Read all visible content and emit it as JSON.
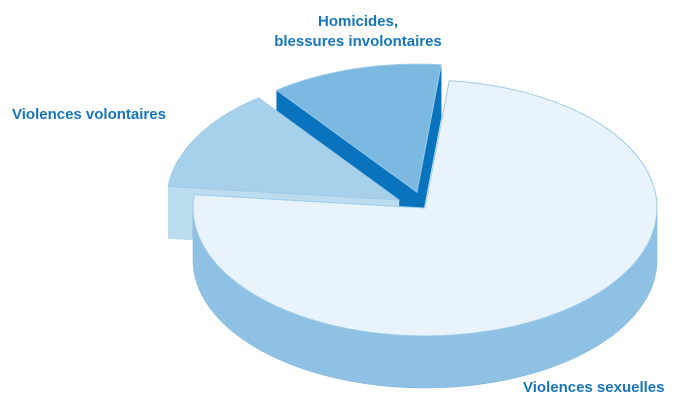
{
  "chart_data": {
    "type": "pie",
    "style": "3d-exploded",
    "labels": [
      "Violences sexuelles",
      "Violences volontaires",
      "Homicides, blessures involontaires"
    ],
    "label_lines": [
      [
        "Violences sexuelles"
      ],
      [
        "Violences volontaires"
      ],
      [
        "Homicides,",
        "blessures involontaires"
      ]
    ],
    "values": [
      75,
      13,
      12
    ],
    "colors": [
      "#e8f3fb",
      "#a7d0ea",
      "#7cb9e0"
    ],
    "side_colors": [
      "#8ec1e4",
      "#bcdcf0",
      "#0a73bd"
    ],
    "exploded": [
      false,
      true,
      true
    ],
    "legend": "none"
  }
}
